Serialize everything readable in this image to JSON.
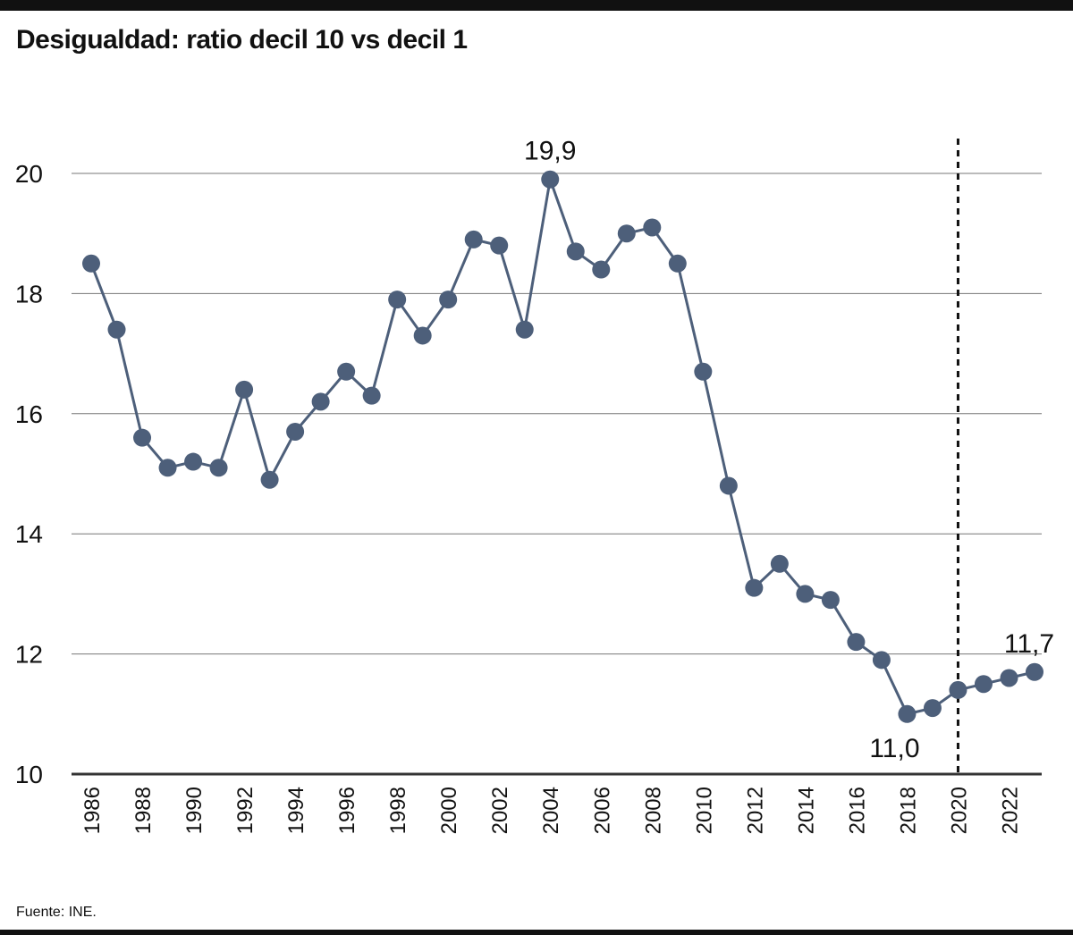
{
  "chart_data": {
    "type": "line",
    "title": "Desigualdad: ratio decil 10 vs decil 1",
    "source": "Fuente: INE.",
    "xlabel": "",
    "ylabel": "",
    "ylim": [
      10,
      20
    ],
    "yticks": [
      10,
      12,
      14,
      16,
      18,
      20
    ],
    "xticks": [
      1986,
      1988,
      1990,
      1992,
      1994,
      1996,
      1998,
      2000,
      2002,
      2004,
      2006,
      2008,
      2010,
      2012,
      2014,
      2016,
      2018,
      2020,
      2022
    ],
    "grid": true,
    "x": [
      1986,
      1987,
      1988,
      1989,
      1990,
      1991,
      1992,
      1993,
      1994,
      1995,
      1996,
      1997,
      1998,
      1999,
      2000,
      2001,
      2002,
      2003,
      2004,
      2005,
      2006,
      2007,
      2008,
      2009,
      2010,
      2011,
      2012,
      2013,
      2014,
      2015,
      2016,
      2017,
      2018,
      2019,
      2020,
      2021,
      2022,
      2023
    ],
    "series": [
      {
        "name": "Ratio decil 10 / decil 1",
        "color": "#4d5f7a",
        "values": [
          18.5,
          17.4,
          15.6,
          15.1,
          15.2,
          15.1,
          16.4,
          14.9,
          15.7,
          16.2,
          16.7,
          16.3,
          17.9,
          17.3,
          17.9,
          18.9,
          18.8,
          17.4,
          19.9,
          18.7,
          18.4,
          19.0,
          19.1,
          18.5,
          16.7,
          14.8,
          13.1,
          13.5,
          13.0,
          12.9,
          12.2,
          11.9,
          11.0,
          11.1,
          11.4,
          11.5,
          11.6,
          11.7
        ]
      }
    ],
    "annotations": [
      {
        "year": 2004,
        "text": "19,9",
        "position": "above"
      },
      {
        "year": 2018,
        "text": "11,0",
        "position": "below-left"
      },
      {
        "year": 2023,
        "text": "11,7",
        "position": "above"
      }
    ],
    "reference_line": {
      "year": 2020,
      "style": "dashed"
    }
  }
}
